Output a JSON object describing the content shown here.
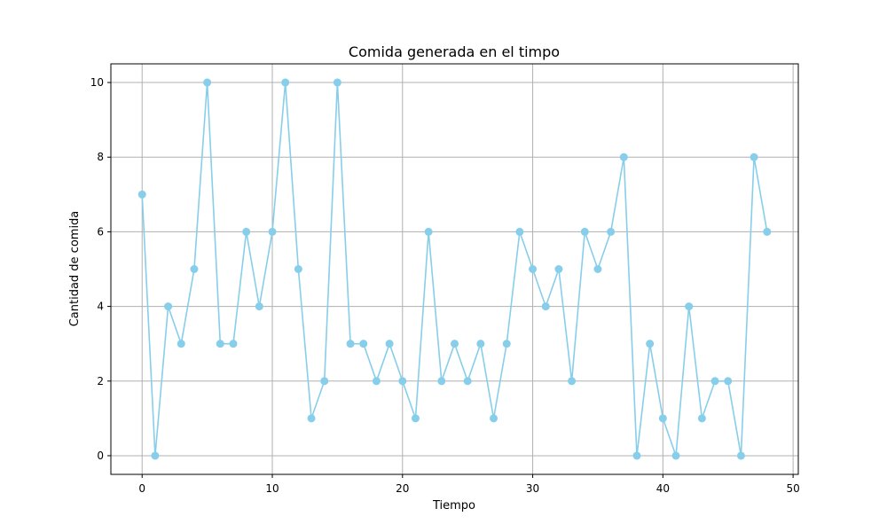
{
  "chart_data": {
    "type": "line",
    "title": "Comida generada en el timpo",
    "xlabel": "Tiempo",
    "ylabel": "Cantidad de comida",
    "xlim": [
      -2.4,
      50.4
    ],
    "ylim": [
      -0.5,
      10.5
    ],
    "xticks": [
      0,
      10,
      20,
      30,
      40,
      50
    ],
    "yticks": [
      0,
      2,
      4,
      6,
      8,
      10
    ],
    "grid": true,
    "series": [
      {
        "color": "#87ceeb",
        "marker": "circle",
        "x": [
          0,
          1,
          2,
          3,
          4,
          5,
          6,
          7,
          8,
          9,
          10,
          11,
          12,
          13,
          14,
          15,
          16,
          17,
          18,
          19,
          20,
          21,
          22,
          23,
          24,
          25,
          26,
          27,
          28,
          29,
          30,
          31,
          32,
          33,
          34,
          35,
          36,
          37,
          38,
          39,
          40,
          41,
          42,
          43,
          44,
          45,
          46,
          47,
          48
        ],
        "values": [
          7,
          0,
          4,
          3,
          5,
          10,
          3,
          3,
          6,
          4,
          6,
          10,
          5,
          1,
          2,
          10,
          3,
          3,
          2,
          3,
          2,
          1,
          6,
          2,
          3,
          2,
          3,
          1,
          3,
          6,
          5,
          4,
          5,
          2,
          6,
          5,
          6,
          8,
          0,
          3,
          1,
          0,
          4,
          1,
          2,
          2,
          0,
          8,
          6
        ]
      }
    ]
  }
}
